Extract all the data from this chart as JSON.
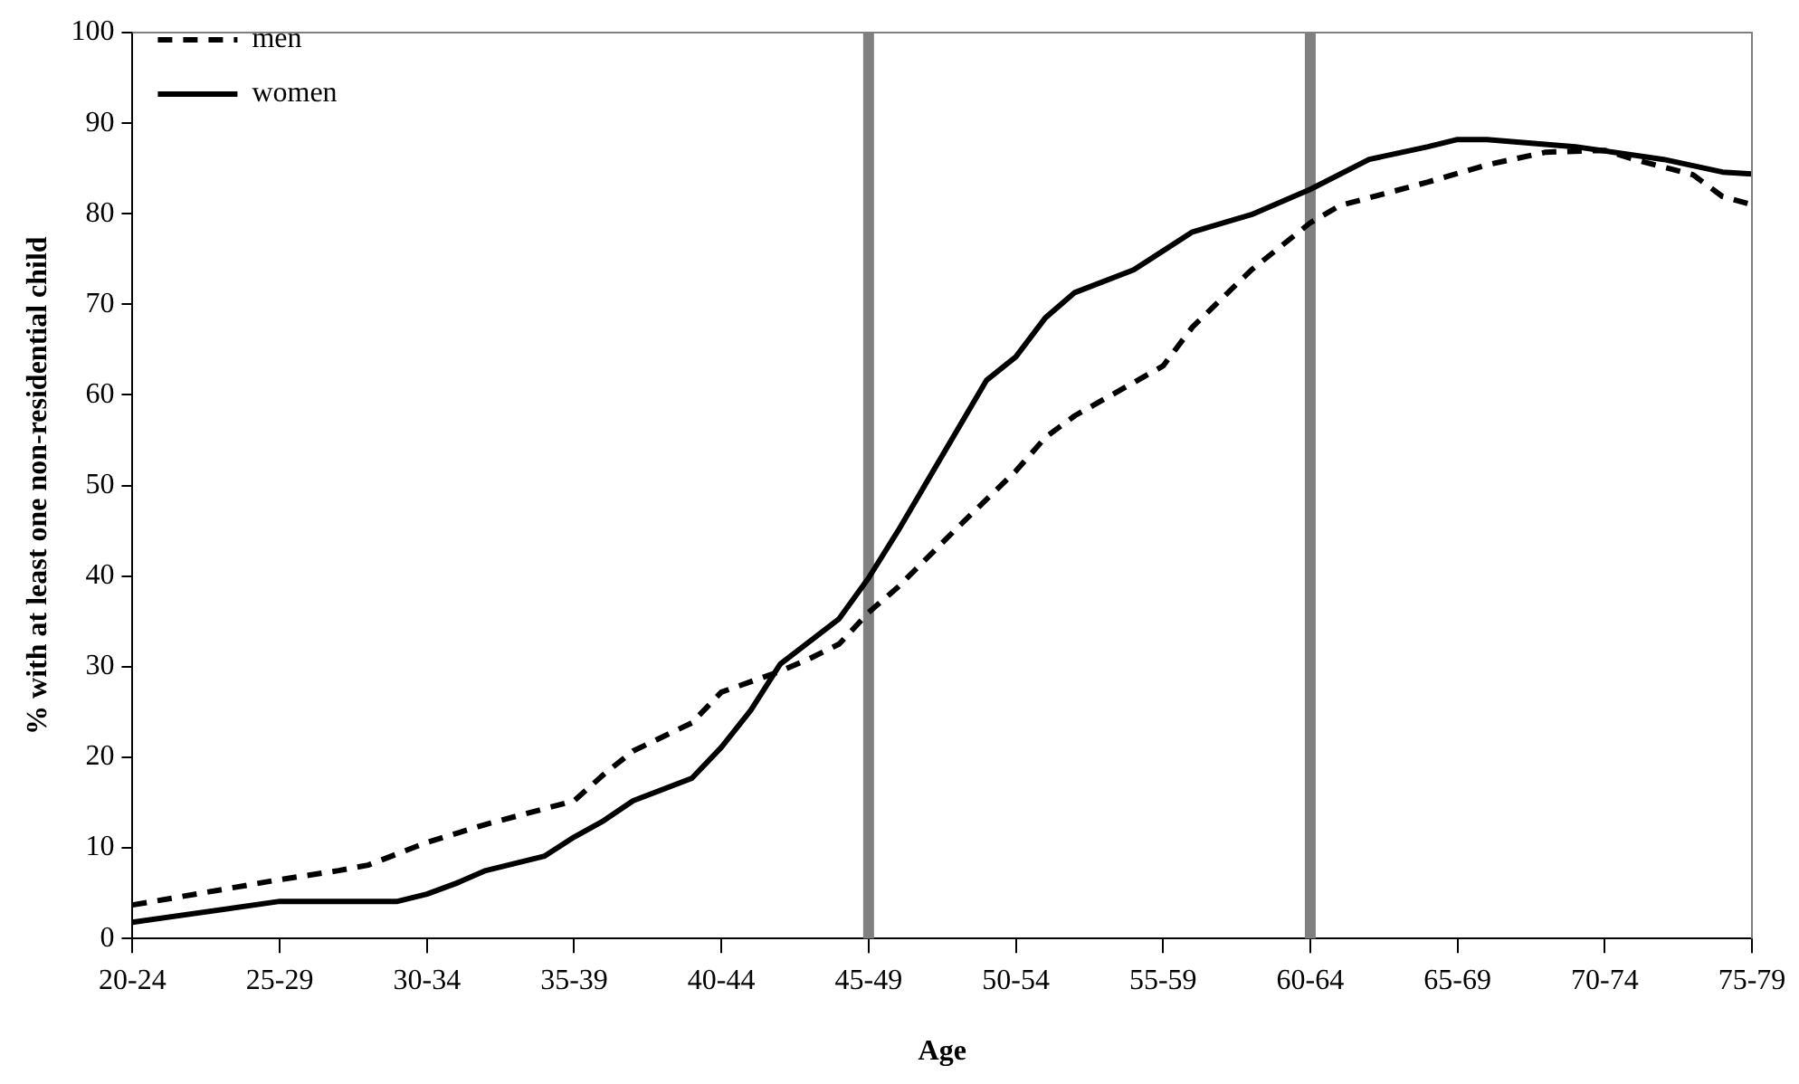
{
  "chart_data": {
    "type": "line",
    "xlabel": "Age",
    "ylabel": "% with at least one non-residential child",
    "categories": [
      "20-24",
      null,
      null,
      null,
      null,
      "25-29",
      null,
      null,
      null,
      null,
      "30-34",
      null,
      null,
      null,
      null,
      "35-39",
      null,
      null,
      null,
      null,
      "40-44",
      null,
      null,
      null,
      null,
      "45-49",
      null,
      null,
      null,
      null,
      "50-54",
      null,
      null,
      null,
      null,
      "55-59",
      null,
      null,
      null,
      null,
      "60-64",
      null,
      null,
      null,
      null,
      "65-69",
      null,
      null,
      null,
      null,
      "70-74",
      null,
      null,
      null,
      null,
      "75-79"
    ],
    "ylim": [
      0,
      100
    ],
    "yticks": [
      0,
      10,
      20,
      30,
      40,
      50,
      60,
      70,
      80,
      90,
      100
    ],
    "grid": false,
    "legend": "top left",
    "marker": "none",
    "series": [
      {
        "name": "men",
        "color": "#000000",
        "line_style": "dashed",
        "values": [
          3.7,
          null,
          null,
          null,
          null,
          6.5,
          null,
          7.5,
          8.1,
          null,
          10.6,
          null,
          12.6,
          null,
          null,
          15.2,
          18.1,
          20.7,
          null,
          23.8,
          27.2,
          null,
          29.5,
          30.9,
          32.5,
          36,
          38.8,
          null,
          45.3,
          null,
          51.6,
          55.3,
          57.7,
          null,
          null,
          63.2,
          67.5,
          null,
          73.8,
          null,
          79,
          80.9,
          null,
          null,
          83.5,
          null,
          85.4,
          null,
          86.8,
          null,
          87,
          86,
          null,
          84.3,
          81.9,
          81
        ]
      },
      {
        "name": "women",
        "color": "#000000",
        "line_style": "solid",
        "values": [
          1.8,
          null,
          null,
          null,
          null,
          4.1,
          null,
          null,
          null,
          4.1,
          4.9,
          6.1,
          7.5,
          null,
          9.1,
          11.2,
          13,
          15.2,
          null,
          17.7,
          21.1,
          25.2,
          30.3,
          null,
          35.3,
          39.8,
          45,
          null,
          null,
          61.6,
          64.2,
          68.5,
          71.3,
          null,
          73.8,
          null,
          78,
          null,
          79.9,
          null,
          82.7,
          null,
          86,
          null,
          87.4,
          88.2,
          88.2,
          null,
          null,
          87.4,
          null,
          null,
          86,
          null,
          84.6,
          84.4
        ]
      }
    ],
    "ref_lines": [
      {
        "axis": "x",
        "value": "45-49",
        "color": "#808080"
      },
      {
        "axis": "x",
        "value": "60-64",
        "color": "#808080"
      }
    ]
  }
}
